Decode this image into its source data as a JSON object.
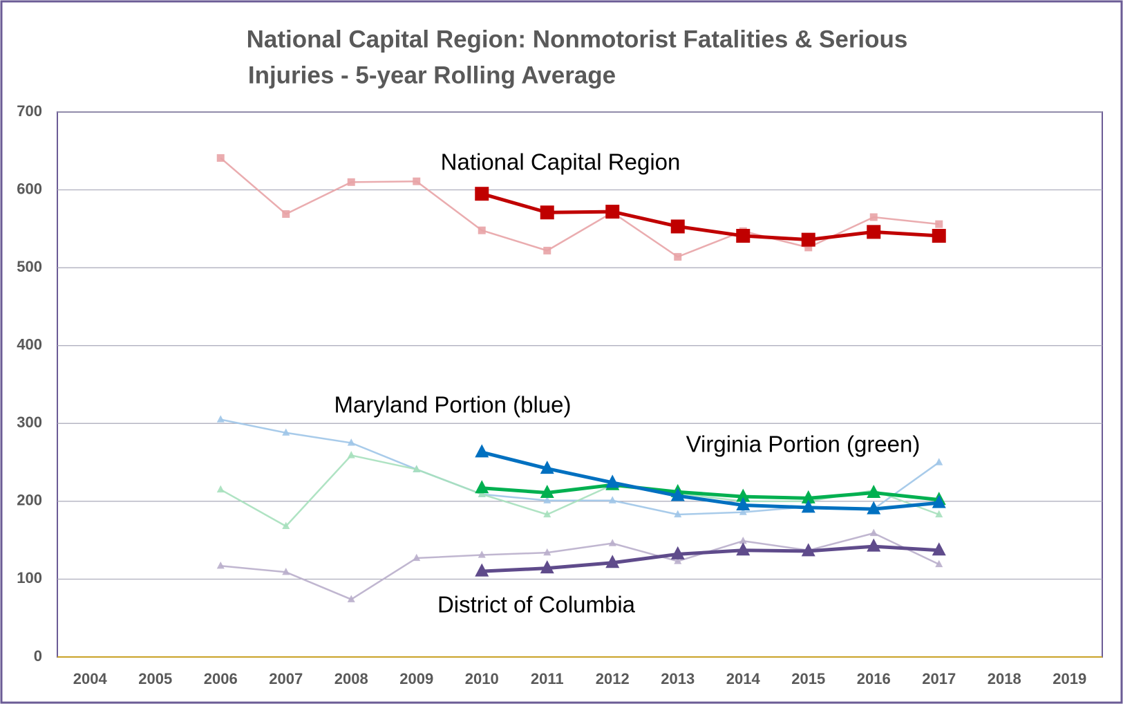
{
  "chart_data": {
    "type": "line",
    "title": [
      "National Capital Region: Nonmotorist Fatalities & Serious",
      "Injuries - 5-year Rolling Average"
    ],
    "categories": [
      "2004",
      "2005",
      "2006",
      "2007",
      "2008",
      "2009",
      "2010",
      "2011",
      "2012",
      "2013",
      "2014",
      "2015",
      "2016",
      "2017",
      "2018",
      "2019"
    ],
    "ylim": [
      0,
      700
    ],
    "yticks": [
      0,
      100,
      200,
      300,
      400,
      500,
      600,
      700
    ],
    "grid": true,
    "annotations": [
      "National Capital Region",
      "Maryland Portion (blue)",
      "Virginia Portion (green)",
      "District of Columbia"
    ],
    "series": [
      {
        "color": "#e8a3a6",
        "marker": "square",
        "values": [
          null,
          null,
          641,
          569,
          610,
          611,
          548,
          522,
          571,
          514,
          547,
          526,
          565,
          556,
          null,
          null
        ]
      },
      {
        "color": "#9fc5e8",
        "marker": "triangle",
        "values": [
          null,
          null,
          305,
          288,
          275,
          241,
          209,
          201,
          201,
          183,
          186,
          193,
          190,
          250,
          null,
          null
        ]
      },
      {
        "color": "#a6e0bd",
        "marker": "triangle",
        "values": [
          null,
          null,
          215,
          168,
          259,
          241,
          209,
          183,
          221,
          210,
          200,
          200,
          214,
          183,
          null,
          null
        ]
      },
      {
        "color": "#b9aecb",
        "marker": "triangle",
        "values": [
          null,
          null,
          117,
          109,
          74,
          127,
          131,
          134,
          146,
          123,
          149,
          137,
          159,
          119,
          null,
          null
        ]
      },
      {
        "color": "#c00000",
        "marker": "square",
        "values": [
          null,
          null,
          null,
          null,
          null,
          null,
          595,
          571,
          572,
          553,
          541,
          536,
          546,
          541,
          null,
          null
        ]
      },
      {
        "color": "#00b050",
        "marker": "triangle",
        "values": [
          null,
          null,
          null,
          null,
          null,
          null,
          217,
          211,
          221,
          212,
          206,
          204,
          211,
          202,
          null,
          null
        ]
      },
      {
        "color": "#0070c0",
        "marker": "triangle",
        "values": [
          null,
          null,
          null,
          null,
          null,
          null,
          263,
          242,
          224,
          207,
          195,
          192,
          190,
          198,
          null,
          null
        ]
      },
      {
        "color": "#5f4b8b",
        "marker": "triangle",
        "values": [
          null,
          null,
          null,
          null,
          null,
          null,
          110,
          114,
          121,
          132,
          137,
          136,
          142,
          137,
          null,
          null
        ]
      }
    ]
  }
}
